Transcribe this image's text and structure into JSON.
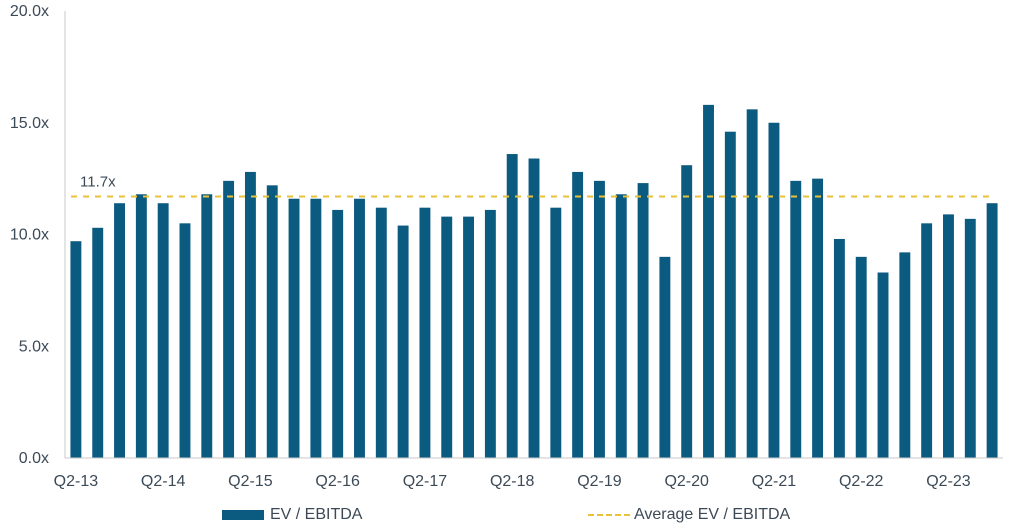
{
  "colors": {
    "bar": "#0b5a80",
    "average_line": "#e8c23a",
    "axis": "#c8c8c8",
    "text": "#3c4a57"
  },
  "chart_data": {
    "type": "bar",
    "ylim": [
      0,
      20
    ],
    "yticks": [
      "0.0x",
      "5.0x",
      "10.0x",
      "15.0x",
      "20.0x"
    ],
    "ytick_values": [
      0,
      5,
      10,
      15,
      20
    ],
    "x_tick_labels": [
      "Q2-13",
      "Q2-14",
      "Q2-15",
      "Q2-16",
      "Q2-17",
      "Q2-18",
      "Q2-19",
      "Q2-20",
      "Q2-21",
      "Q2-22",
      "Q2-23"
    ],
    "x_tick_every": 4,
    "series": [
      {
        "name": "EV / EBITDA",
        "values": [
          9.7,
          10.3,
          11.4,
          11.8,
          11.4,
          10.5,
          11.8,
          12.4,
          12.8,
          12.2,
          11.6,
          11.6,
          11.1,
          11.6,
          11.2,
          10.4,
          11.2,
          10.8,
          10.8,
          11.1,
          13.6,
          13.4,
          11.2,
          12.8,
          12.4,
          11.8,
          12.3,
          9.0,
          13.1,
          15.8,
          14.6,
          15.6,
          15.0,
          12.4,
          12.5,
          9.8,
          9.0,
          8.3,
          9.2,
          10.5,
          10.9,
          10.7,
          11.4
        ]
      }
    ],
    "average": {
      "name": "Average EV / EBITDA",
      "value": 11.7,
      "label": "11.7x"
    },
    "legend_position": "bottom",
    "grid": false
  }
}
